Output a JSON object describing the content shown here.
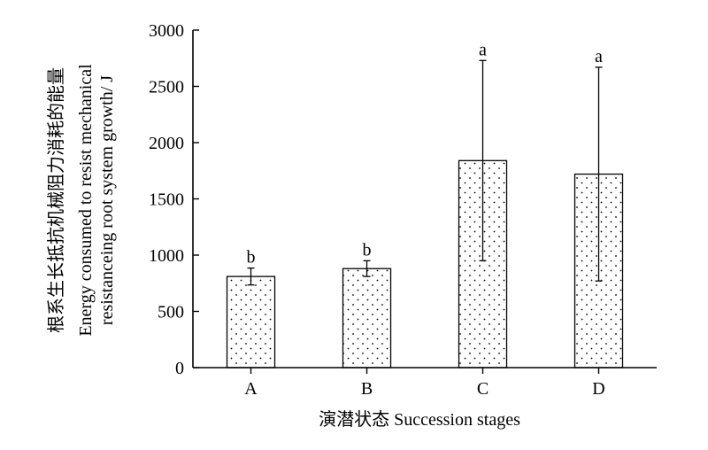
{
  "chart_data": {
    "type": "bar",
    "title": "",
    "xlabel": "演潜状态 Succession stages",
    "ylabel_lines": [
      "根系生长抵抗机械阻力消耗的能量",
      "Energy consumed to resist mechanical",
      "resistanceing root system growth/ J"
    ],
    "categories": [
      "A",
      "B",
      "C",
      "D"
    ],
    "values": [
      810,
      880,
      1840,
      1720
    ],
    "error": [
      75,
      70,
      890,
      950
    ],
    "significance": [
      "b",
      "b",
      "a",
      "a"
    ],
    "ylim": [
      0,
      3000
    ],
    "yticks": [
      0,
      500,
      1000,
      1500,
      2000,
      2500,
      3000
    ],
    "grid": false,
    "legend": "none",
    "bar_fill": "dotted"
  }
}
